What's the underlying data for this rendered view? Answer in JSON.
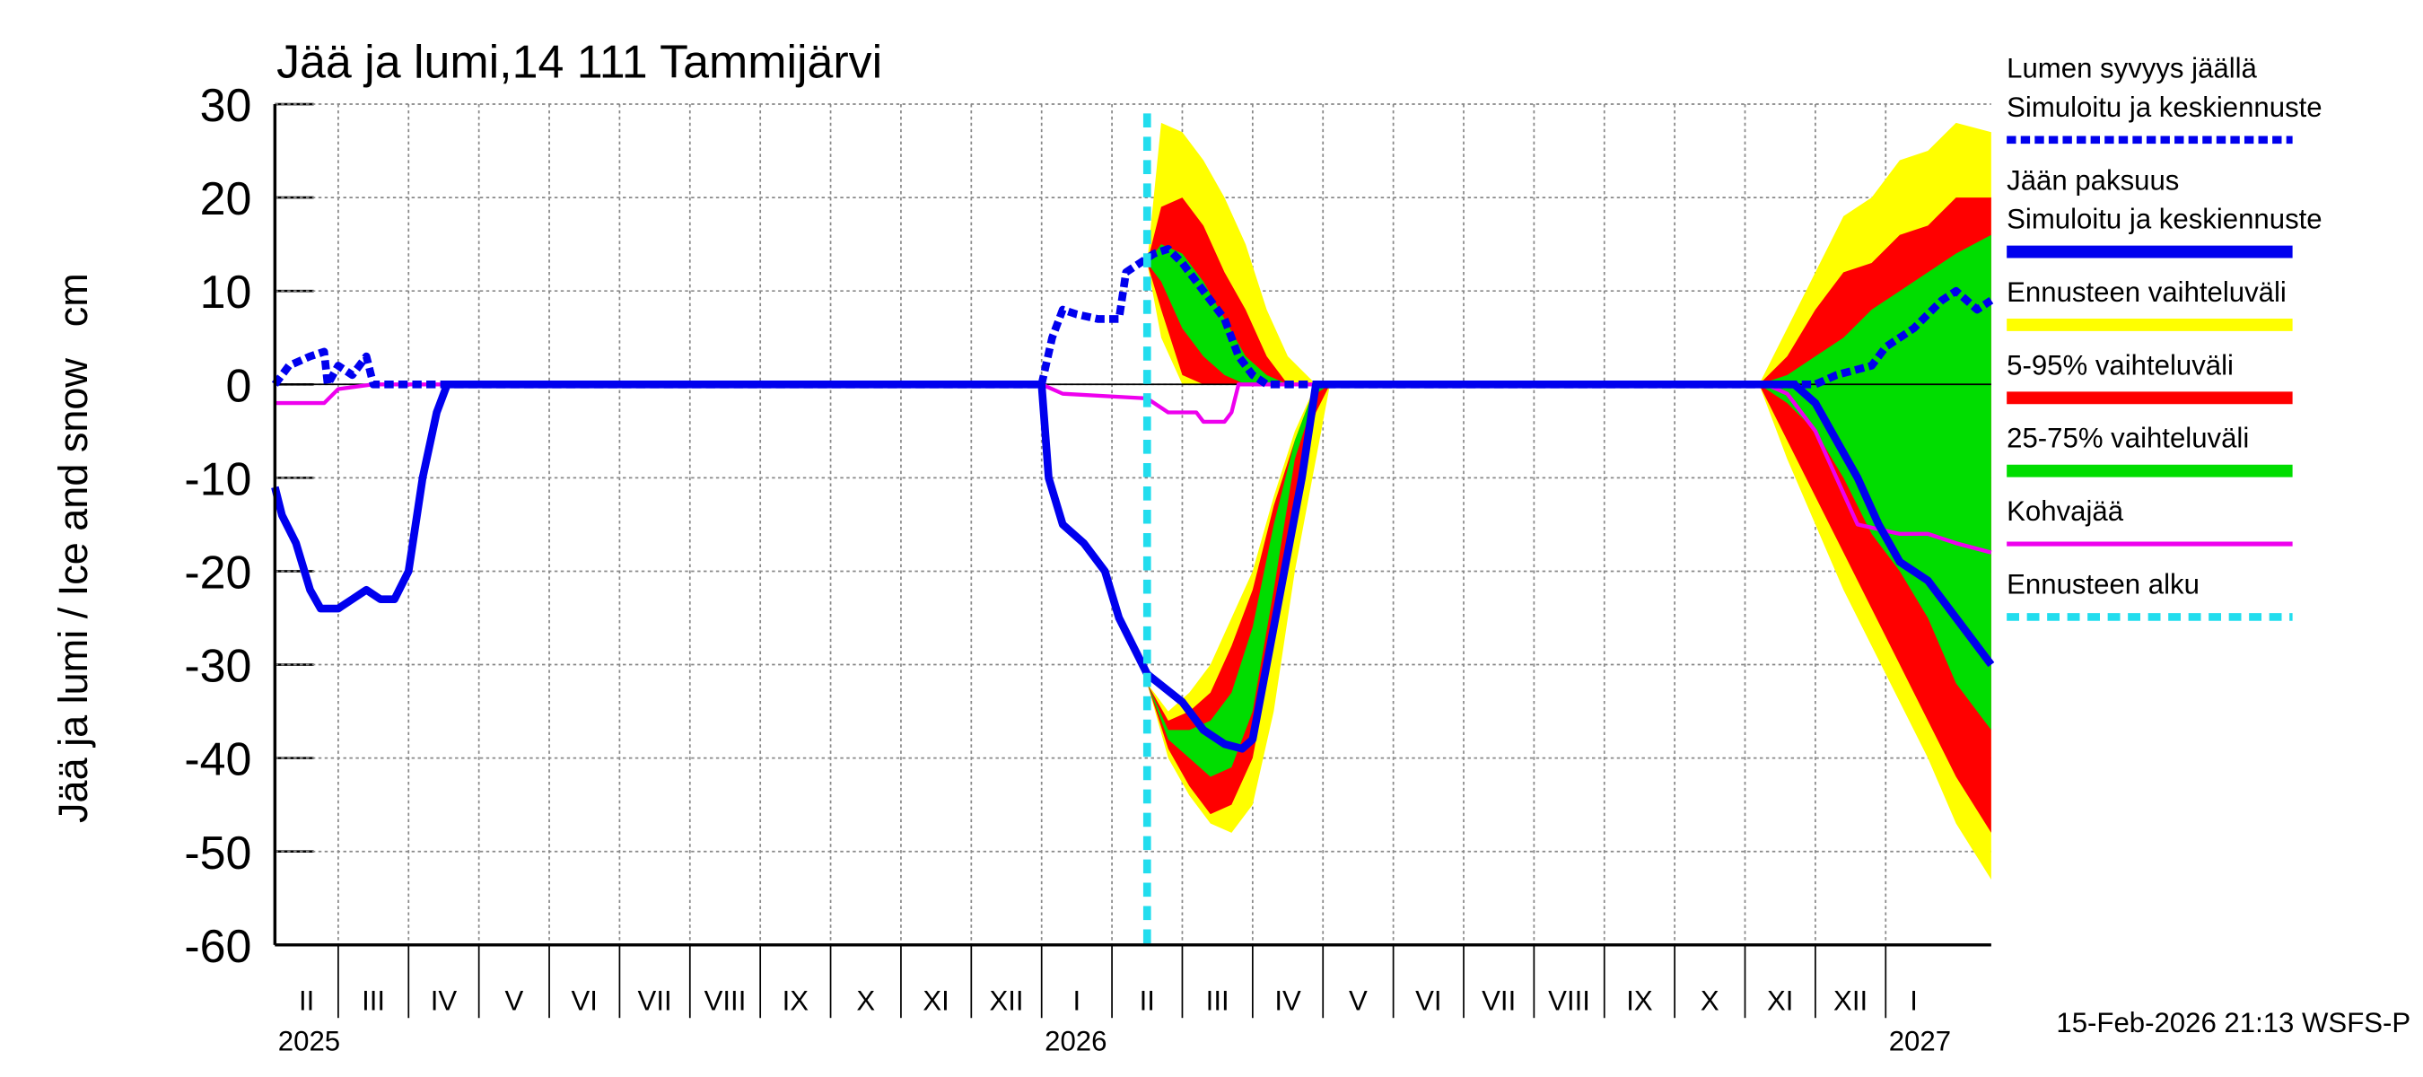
{
  "chart_data": {
    "type": "ice-forecast",
    "title": "Jää ja lumi,14 111 Tammijärvi",
    "ylabel": "Jää ja lumi / Ice and snow",
    "yunit": "cm",
    "footer": "15-Feb-2026 21:13 WSFS-P",
    "xlim": [
      1.1,
      25.5
    ],
    "ylim": [
      -60,
      30
    ],
    "yticks": [
      -60,
      -50,
      -40,
      -30,
      -20,
      -10,
      0,
      10,
      20,
      30
    ],
    "grid": true,
    "xgrid": [
      2,
      3,
      4,
      5,
      6,
      7,
      8,
      9,
      10,
      11,
      12,
      13,
      14,
      15,
      16,
      17,
      18,
      19,
      20,
      21,
      22,
      23,
      24
    ],
    "xticks": [
      {
        "value": 1.55,
        "label": "II"
      },
      {
        "value": 2.5,
        "label": "III"
      },
      {
        "value": 3.5,
        "label": "IV"
      },
      {
        "value": 4.5,
        "label": "V"
      },
      {
        "value": 5.5,
        "label": "VI"
      },
      {
        "value": 6.5,
        "label": "VII"
      },
      {
        "value": 7.5,
        "label": "VIII"
      },
      {
        "value": 8.5,
        "label": "IX"
      },
      {
        "value": 9.5,
        "label": "X"
      },
      {
        "value": 10.5,
        "label": "XI"
      },
      {
        "value": 11.5,
        "label": "XII"
      },
      {
        "value": 12.5,
        "label": "I"
      },
      {
        "value": 13.5,
        "label": "II"
      },
      {
        "value": 14.5,
        "label": "III"
      },
      {
        "value": 15.5,
        "label": "IV"
      },
      {
        "value": 16.5,
        "label": "V"
      },
      {
        "value": 17.5,
        "label": "VI"
      },
      {
        "value": 18.5,
        "label": "VII"
      },
      {
        "value": 19.5,
        "label": "VIII"
      },
      {
        "value": 20.5,
        "label": "IX"
      },
      {
        "value": 21.5,
        "label": "X"
      },
      {
        "value": 22.5,
        "label": "XI"
      },
      {
        "value": 23.5,
        "label": "XII"
      },
      {
        "value": 24.4,
        "label": "I"
      }
    ],
    "year_labels": [
      {
        "value": 1.1,
        "label": "2025"
      },
      {
        "value": 12,
        "label": "2026"
      },
      {
        "value": 24,
        "label": "2027"
      }
    ],
    "bands": [
      {
        "name": "Ennusteen vaihteluväli",
        "color": "#ffff00",
        "segments": [
          {
            "x": [
              13.5,
              13.7,
              14.0,
              14.3,
              14.6,
              14.9,
              15.2,
              15.5,
              15.9
            ],
            "upper": [
              13,
              28,
              27,
              24,
              20,
              15,
              8,
              3,
              0
            ],
            "lower": [
              13,
              5,
              0,
              0,
              0,
              0,
              0,
              0,
              0
            ]
          },
          {
            "x": [
              13.5,
              13.8,
              14.1,
              14.4,
              14.7,
              15.0,
              15.3,
              15.6,
              15.9,
              16.1
            ],
            "upper": [
              -32,
              -35,
              -33,
              -30,
              -25,
              -20,
              -12,
              -5,
              0,
              0
            ],
            "lower": [
              -32,
              -40,
              -44,
              -47,
              -48,
              -45,
              -35,
              -20,
              -8,
              0
            ]
          },
          {
            "x": [
              22.2,
              22.6,
              23.0,
              23.4,
              23.8,
              24.2,
              24.6,
              25.0,
              25.5
            ],
            "upper": [
              0,
              6,
              12,
              18,
              20,
              24,
              25,
              28,
              27
            ],
            "lower": [
              0,
              -8,
              -15,
              -22,
              -28,
              -34,
              -40,
              -47,
              -53
            ]
          }
        ]
      },
      {
        "name": "5-95% vaihteluväli",
        "color": "#ff0000",
        "segments": [
          {
            "x": [
              13.5,
              13.7,
              14.0,
              14.3,
              14.6,
              14.9,
              15.2,
              15.5,
              15.9
            ],
            "upper": [
              13,
              19,
              20,
              17,
              12,
              8,
              3,
              0,
              0
            ],
            "lower": [
              13,
              8,
              1,
              0,
              0,
              0,
              0,
              0,
              0
            ]
          },
          {
            "x": [
              13.5,
              13.8,
              14.1,
              14.4,
              14.7,
              15.0,
              15.3,
              15.6,
              15.9,
              16.1
            ],
            "upper": [
              -32,
              -36,
              -35,
              -33,
              -28,
              -22,
              -13,
              -6,
              0,
              0
            ],
            "lower": [
              -32,
              -39,
              -43,
              -46,
              -45,
              -40,
              -28,
              -12,
              -3,
              0
            ]
          },
          {
            "x": [
              22.2,
              22.6,
              23.0,
              23.4,
              23.8,
              24.2,
              24.6,
              25.0,
              25.5
            ],
            "upper": [
              0,
              3,
              8,
              12,
              13,
              16,
              17,
              20,
              20
            ],
            "lower": [
              0,
              -6,
              -12,
              -18,
              -24,
              -30,
              -36,
              -42,
              -48
            ]
          }
        ]
      },
      {
        "name": "25-75% vaihteluväli",
        "color": "#00dd00",
        "segments": [
          {
            "x": [
              13.5,
              13.7,
              14.0,
              14.3,
              14.6,
              14.9,
              15.2,
              15.5,
              15.9
            ],
            "upper": [
              13,
              15,
              14,
              11,
              7,
              3,
              1,
              0,
              0
            ],
            "lower": [
              13,
              11,
              6,
              3,
              1,
              0,
              0,
              0,
              0
            ]
          },
          {
            "x": [
              13.5,
              13.8,
              14.1,
              14.4,
              14.7,
              15.0,
              15.3,
              15.6,
              15.9,
              16.1
            ],
            "upper": [
              -32,
              -37,
              -37,
              -36,
              -33,
              -26,
              -15,
              -6,
              0,
              0
            ],
            "lower": [
              -32,
              -38,
              -40,
              -42,
              -41,
              -35,
              -22,
              -8,
              -1,
              0
            ]
          },
          {
            "x": [
              22.2,
              22.6,
              23.0,
              23.4,
              23.8,
              24.2,
              24.6,
              25.0,
              25.5
            ],
            "upper": [
              0,
              1,
              3,
              5,
              8,
              10,
              12,
              14,
              16
            ],
            "lower": [
              0,
              -2,
              -5,
              -10,
              -16,
              -20,
              -25,
              -32,
              -37
            ]
          }
        ]
      }
    ],
    "series": [
      {
        "name": [
          "Lumen syvyys jäällä",
          "Simuloitu ja keskiennuste"
        ],
        "color": "#0000ee",
        "dashed": true,
        "x": [
          1.1,
          1.3,
          1.6,
          1.8,
          1.85,
          2.0,
          2.2,
          2.4,
          2.5,
          2.7,
          12.0,
          12.15,
          12.3,
          12.5,
          12.8,
          13.1,
          13.2,
          13.4,
          13.6,
          13.8,
          14.0,
          14.3,
          14.6,
          14.8,
          15.0,
          15.2,
          23.0,
          23.3,
          23.8,
          24.0,
          24.4,
          24.8,
          25.0,
          25.3,
          25.5
        ],
        "values": [
          0,
          2,
          3,
          3.5,
          0,
          2,
          1,
          3,
          0,
          0,
          0,
          5,
          8,
          7.5,
          7,
          7,
          12,
          13,
          14,
          14.5,
          13,
          10,
          7,
          3,
          1,
          0,
          0,
          1,
          2,
          4,
          6,
          9,
          10,
          8,
          9
        ]
      },
      {
        "name": [
          "Jään paksuus",
          "Simuloitu ja keskiennuste"
        ],
        "color": "#0000ee",
        "dashed": false,
        "x": [
          1.1,
          1.2,
          1.4,
          1.6,
          1.75,
          2.0,
          2.2,
          2.4,
          2.6,
          2.8,
          3.0,
          3.2,
          3.4,
          3.55,
          12.0,
          12.1,
          12.3,
          12.6,
          12.9,
          13.1,
          13.5,
          14.0,
          14.3,
          14.6,
          14.85,
          15.0,
          15.2,
          15.5,
          15.7,
          15.9,
          22.7,
          23.0,
          23.3,
          23.6,
          23.9,
          24.2,
          24.6,
          25.0,
          25.5
        ],
        "values": [
          -11,
          -14,
          -17,
          -22,
          -24,
          -24,
          -23,
          -22,
          -23,
          -23,
          -20,
          -10,
          -3,
          0,
          0,
          -10,
          -15,
          -17,
          -20,
          -25,
          -31,
          -34,
          -37,
          -38.5,
          -39,
          -38,
          -30,
          -18,
          -10,
          0,
          0,
          -2,
          -6,
          -10,
          -15,
          -19,
          -21,
          -25,
          -30
        ]
      },
      {
        "name": "Kohvajää",
        "color": "#ee00ee",
        "dashed": false,
        "thin": true,
        "x": [
          1.1,
          1.8,
          2.0,
          2.5,
          12.0,
          12.3,
          13.5,
          13.8,
          14.2,
          14.3,
          14.6,
          14.7,
          14.8,
          22.3,
          22.6,
          23.0,
          23.3,
          23.6,
          24.2,
          24.6,
          25.0,
          25.5
        ],
        "values": [
          -2,
          -2,
          -0.5,
          0,
          0,
          -1,
          -1.5,
          -3,
          -3,
          -4,
          -4,
          -3,
          0,
          0,
          -1,
          -5,
          -10,
          -15,
          -16,
          -16,
          -17,
          -18
        ]
      }
    ],
    "forecast_start": {
      "name": "Ennusteen alku",
      "x": 13.5,
      "color": "#22ddee"
    }
  }
}
